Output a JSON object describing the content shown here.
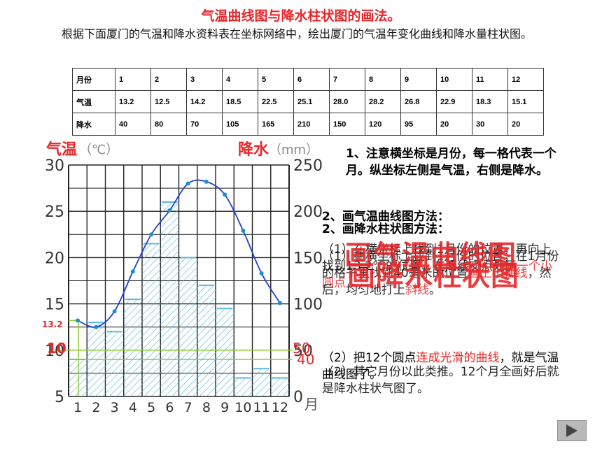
{
  "title": "气温曲线图与降水柱状图的画法。",
  "intro": "根据下面厦门的气温和降水资料表在坐标网络中，绘出厦门的气温年变化曲线和降水量柱状图。",
  "table": {
    "row_headers": [
      "月份",
      "气温",
      "降水"
    ],
    "months": [
      "1",
      "2",
      "3",
      "4",
      "5",
      "6",
      "7",
      "8",
      "9",
      "10",
      "11",
      "12"
    ],
    "temps": [
      "13.2",
      "12.5",
      "14.2",
      "18.5",
      "22.5",
      "25.1",
      "28.0",
      "28.2",
      "26.8",
      "22.9",
      "18.3",
      "15.1"
    ],
    "precip": [
      "40",
      "80",
      "70",
      "105",
      "165",
      "210",
      "150",
      "120",
      "95",
      "20",
      "30",
      "20"
    ]
  },
  "axis_labels": {
    "left_name": "气温",
    "left_unit": "（℃）",
    "right_name": "降水",
    "right_unit": "（mm）",
    "x_unit": "月"
  },
  "annotations": {
    "temp_marker": "13.2",
    "left_10": "10",
    "right_50": "50",
    "right_40": "40"
  },
  "notes": {
    "n1": "1、注意横坐标是月份，每一格代表一个月。纵坐标左侧是气温，右侧是降水。",
    "n2a": "2、画气温曲线图方法：",
    "n2b": "2、画降水柱状图方法：",
    "p1a_black": "（1）在横坐标上找到1月份的位置，再向上找到13.2℃的位置，在两线交点处画",
    "p1a_red": "一个小圆点",
    "p1b_black1": "（1）在横坐标上找到1月份的位置，在1月份的格子里找到40毫米的位置",
    "p1b_red1": "画上小横线",
    "p1b_black2": "，然后，均匀地打上",
    "p1b_red2": "斜线",
    "p1b_black3": "。",
    "p2a_black": "（2）把12个圆点",
    "p2a_red": "连成光滑的曲线",
    "p2a_black2": "，就是气温曲线图了。",
    "p2b": "（2）其它月份以此类推。12个月全画好后就是降水柱状气图了。",
    "overlay1": "画气温曲线图",
    "overlay2": "画降水柱状图"
  },
  "chart_data": {
    "type": "bar+line",
    "categories": [
      "1",
      "2",
      "3",
      "4",
      "5",
      "6",
      "7",
      "8",
      "9",
      "10",
      "11",
      "12"
    ],
    "series": [
      {
        "kind": "line",
        "axis": "left",
        "values": [
          13.2,
          12.5,
          14.2,
          18.5,
          22.5,
          25.1,
          28.0,
          28.2,
          26.8,
          22.9,
          18.3,
          15.1
        ]
      },
      {
        "kind": "bar",
        "axis": "right",
        "values": [
          40,
          80,
          70,
          105,
          165,
          210,
          150,
          120,
          95,
          20,
          30,
          20
        ]
      }
    ],
    "y_left": {
      "range": [
        5,
        30
      ],
      "ticks": [
        5,
        10,
        15,
        20,
        25,
        30
      ]
    },
    "y_right": {
      "range": [
        0,
        250
      ],
      "ticks": [
        0,
        50,
        100,
        150,
        200,
        250
      ]
    },
    "grid": true,
    "colors": {
      "line": "#1f3fd0",
      "bar": "#5bb8e3",
      "points": "#1b8fcf",
      "guide": "#8ccb28",
      "red": "#e8262a"
    }
  }
}
